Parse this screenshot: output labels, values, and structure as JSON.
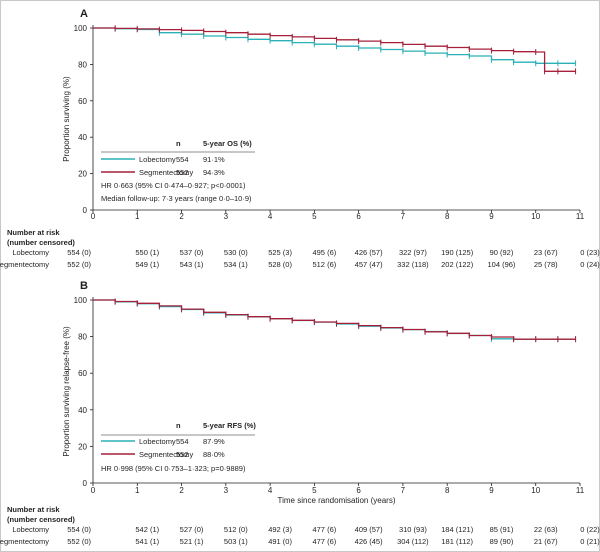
{
  "colors": {
    "lobectomy": "#2ab0b7",
    "segmentectomy": "#a6203a",
    "axis": "#231f20"
  },
  "panels": [
    {
      "label": "A",
      "ylabel": "Proportion surviving (%)",
      "xlabel": "",
      "table_header": {
        "n": "n",
        "rate": "5-year OS (%)"
      },
      "legend_rows": [
        {
          "arm": "lobectomy",
          "name": "Lobectomy",
          "n": "554",
          "rate": "91·1%"
        },
        {
          "arm": "segmentectomy",
          "name": "Segmentectomy",
          "n": "552",
          "rate": "94·3%"
        }
      ],
      "stats": [
        "HR 0·663 (95% CI 0·474–0·927; p<0·0001)",
        "Median follow-up: 7·3 years (range 0·0–10·9)"
      ],
      "risk_title": [
        "Number at risk",
        "(number censored)"
      ],
      "risk_rows": [
        {
          "label": "Lobectomy",
          "values": [
            "554 (0)",
            "550 (1)",
            "537 (0)",
            "530 (0)",
            "525 (3)",
            "495 (6)",
            "426 (57)",
            "322 (97)",
            "190 (125)",
            "90 (92)",
            "23 (67)",
            "0 (23)"
          ]
        },
        {
          "label": "Segmentectomy",
          "values": [
            "552 (0)",
            "549 (1)",
            "543 (1)",
            "534 (1)",
            "528 (0)",
            "512 (6)",
            "457 (47)",
            "332 (118)",
            "202 (122)",
            "104 (96)",
            "25 (78)",
            "0 (24)"
          ]
        }
      ]
    },
    {
      "label": "B",
      "ylabel": "Proportion surviving relapse-free (%)",
      "xlabel": "Time since randomisation (years)",
      "table_header": {
        "n": "n",
        "rate": "5-year RFS (%)"
      },
      "legend_rows": [
        {
          "arm": "lobectomy",
          "name": "Lobectomy",
          "n": "554",
          "rate": "87·9%"
        },
        {
          "arm": "segmentectomy",
          "name": "Segmentectomy",
          "n": "552",
          "rate": "88·0%"
        }
      ],
      "stats": [
        "HR 0·998 (95% CI 0·753–1·323; p=0·9889)"
      ],
      "risk_title": [
        "Number at risk",
        "(number censored)"
      ],
      "risk_rows": [
        {
          "label": "Lobectomy",
          "values": [
            "554 (0)",
            "542 (1)",
            "527 (0)",
            "512 (0)",
            "492 (3)",
            "477 (6)",
            "409 (57)",
            "310 (93)",
            "184 (121)",
            "85 (91)",
            "22 (63)",
            "0 (22)"
          ]
        },
        {
          "label": "Segmentectomy",
          "values": [
            "552 (0)",
            "541 (1)",
            "521 (1)",
            "503 (1)",
            "491 (0)",
            "477 (6)",
            "426 (45)",
            "304 (112)",
            "181 (112)",
            "89 (90)",
            "21 (67)",
            "0 (21)"
          ]
        }
      ]
    }
  ],
  "chart_data": [
    {
      "type": "line",
      "title": "A",
      "xlabel": "",
      "ylabel": "Proportion surviving (%)",
      "xlim": [
        0,
        11
      ],
      "ylim": [
        0,
        100
      ],
      "xticks": [
        0,
        1,
        2,
        3,
        4,
        5,
        6,
        7,
        8,
        9,
        10,
        11
      ],
      "yticks": [
        0,
        20,
        40,
        60,
        80,
        100
      ],
      "grid": false,
      "legend": "bottom-left",
      "step": true,
      "series": [
        {
          "name": "Lobectomy",
          "color": "#2ab0b7",
          "x": [
            0,
            0.5,
            1.0,
            1.5,
            2.0,
            2.5,
            3.0,
            3.5,
            4.0,
            4.5,
            5.0,
            5.5,
            6.0,
            6.5,
            7.0,
            7.5,
            8.0,
            8.5,
            9.0,
            9.5,
            10.0,
            10.5,
            10.9
          ],
          "y": [
            100,
            99.6,
            99.2,
            97.4,
            96.6,
            95.6,
            94.8,
            93.8,
            93.0,
            92.0,
            91.1,
            90.0,
            89.0,
            88.2,
            87.3,
            86.2,
            85.4,
            84.6,
            82.6,
            81.2,
            80.6,
            80.6,
            80.6
          ]
        },
        {
          "name": "Segmentectomy",
          "color": "#a6203a",
          "x": [
            0,
            0.5,
            1.0,
            1.5,
            2.0,
            2.5,
            3.0,
            3.5,
            4.0,
            4.5,
            5.0,
            5.5,
            6.0,
            6.5,
            7.0,
            7.5,
            8.0,
            8.5,
            9.0,
            9.5,
            10.0,
            10.2,
            10.5,
            10.9
          ],
          "y": [
            100,
            99.8,
            99.5,
            99.1,
            98.7,
            98.1,
            97.4,
            96.6,
            95.8,
            95.1,
            94.3,
            93.5,
            92.8,
            92.0,
            91.0,
            90.0,
            89.3,
            88.4,
            87.6,
            87.0,
            86.8,
            76.2,
            76.2,
            76.2
          ]
        }
      ]
    },
    {
      "type": "line",
      "title": "B",
      "xlabel": "Time since randomisation (years)",
      "ylabel": "Proportion surviving relapse-free (%)",
      "xlim": [
        0,
        11
      ],
      "ylim": [
        0,
        100
      ],
      "xticks": [
        0,
        1,
        2,
        3,
        4,
        5,
        6,
        7,
        8,
        9,
        10,
        11
      ],
      "yticks": [
        0,
        20,
        40,
        60,
        80,
        100
      ],
      "grid": false,
      "legend": "bottom-left",
      "step": true,
      "series": [
        {
          "name": "Lobectomy",
          "color": "#2ab0b7",
          "x": [
            0,
            0.5,
            1.0,
            1.5,
            2.0,
            2.5,
            3.0,
            3.5,
            4.0,
            4.5,
            5.0,
            5.5,
            6.0,
            6.5,
            7.0,
            7.5,
            8.0,
            8.5,
            9.0,
            9.5,
            10.0,
            10.5,
            10.9
          ],
          "y": [
            100,
            99.0,
            98.0,
            96.4,
            94.8,
            93.0,
            91.8,
            90.8,
            89.8,
            88.8,
            87.9,
            86.9,
            85.7,
            84.7,
            83.8,
            82.8,
            81.7,
            80.6,
            78.8,
            78.6,
            78.6,
            78.6,
            78.6
          ]
        },
        {
          "name": "Segmentectomy",
          "color": "#a6203a",
          "x": [
            0,
            0.5,
            1.0,
            1.5,
            2.0,
            2.5,
            3.0,
            3.5,
            4.0,
            4.5,
            5.0,
            5.5,
            6.0,
            6.5,
            7.0,
            7.5,
            8.0,
            8.5,
            9.0,
            9.5,
            10.0,
            10.5,
            10.9
          ],
          "y": [
            100,
            99.2,
            98.2,
            96.8,
            95.0,
            93.3,
            92.0,
            90.9,
            89.8,
            88.9,
            88.0,
            87.2,
            86.0,
            84.9,
            83.9,
            82.6,
            81.8,
            80.6,
            79.8,
            78.6,
            78.6,
            78.6,
            78.6
          ]
        }
      ]
    }
  ]
}
